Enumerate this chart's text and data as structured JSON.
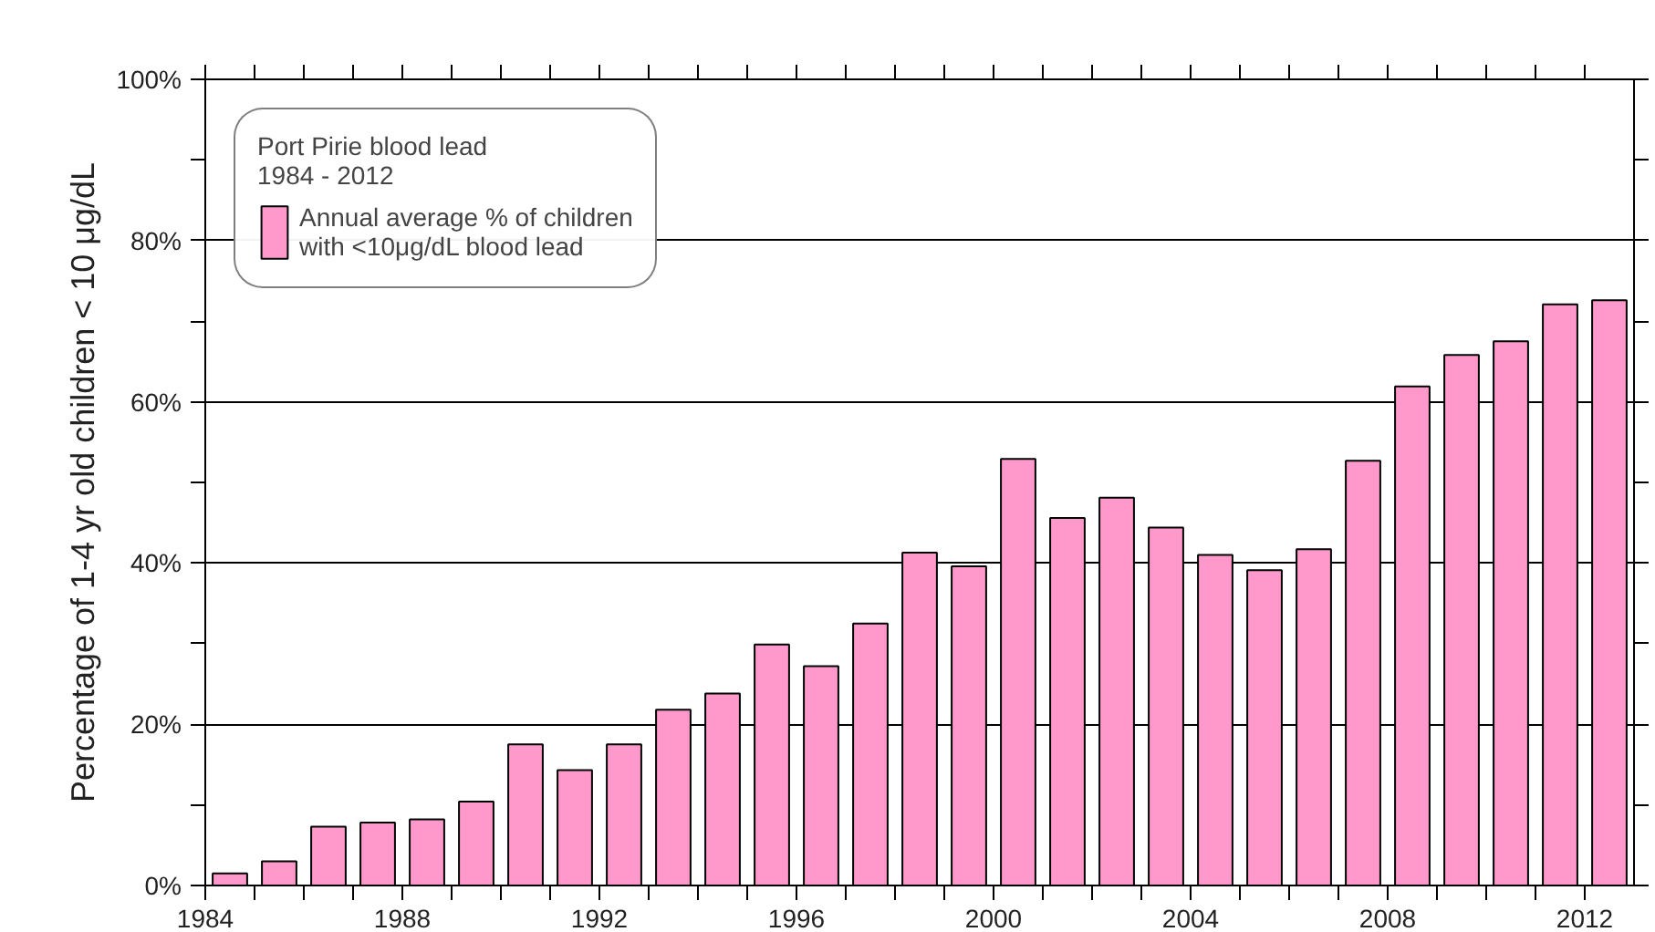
{
  "chart_data": {
    "type": "bar",
    "ylabel": "Percentage of 1-4 yr old children < 10 μg/dL",
    "legend_title": "Port Pirie blood lead\n1984 - 2012",
    "x": [
      1984,
      1985,
      1986,
      1987,
      1988,
      1989,
      1990,
      1991,
      1992,
      1993,
      1994,
      1995,
      1996,
      1997,
      1998,
      1999,
      2000,
      2001,
      2002,
      2003,
      2004,
      2005,
      2006,
      2007,
      2008,
      2009,
      2010,
      2011,
      2012
    ],
    "series": [
      {
        "name": "Annual average % of children\nwith <10μg/dL blood lead",
        "color": "#ff99cc",
        "values": [
          1.5,
          3,
          7.3,
          7.8,
          8.2,
          10.4,
          17.5,
          14.3,
          17.5,
          21.8,
          23.8,
          29.9,
          27.2,
          32.5,
          41.3,
          39.6,
          52.9,
          45.6,
          48.1,
          44.4,
          41.0,
          39.1,
          41.7,
          52.7,
          61.9,
          65.8,
          67.5,
          72.1,
          72.6
        ]
      }
    ],
    "xlim": [
      1983.5,
      2012.5
    ],
    "xticks": [
      {
        "value": 1983.5,
        "label": "1984"
      },
      {
        "value": 1984.5,
        "label": null
      },
      {
        "value": 1985.5,
        "label": null
      },
      {
        "value": 1986.5,
        "label": null
      },
      {
        "value": 1987.5,
        "label": "1988"
      },
      {
        "value": 1988.5,
        "label": null
      },
      {
        "value": 1989.5,
        "label": null
      },
      {
        "value": 1990.5,
        "label": null
      },
      {
        "value": 1991.5,
        "label": "1992"
      },
      {
        "value": 1992.5,
        "label": null
      },
      {
        "value": 1993.5,
        "label": null
      },
      {
        "value": 1994.5,
        "label": null
      },
      {
        "value": 1995.5,
        "label": "1996"
      },
      {
        "value": 1996.5,
        "label": null
      },
      {
        "value": 1997.5,
        "label": null
      },
      {
        "value": 1998.5,
        "label": null
      },
      {
        "value": 1999.5,
        "label": "2000"
      },
      {
        "value": 2000.5,
        "label": null
      },
      {
        "value": 2001.5,
        "label": null
      },
      {
        "value": 2002.5,
        "label": null
      },
      {
        "value": 2003.5,
        "label": "2004"
      },
      {
        "value": 2004.5,
        "label": null
      },
      {
        "value": 2005.5,
        "label": null
      },
      {
        "value": 2006.5,
        "label": null
      },
      {
        "value": 2007.5,
        "label": "2008"
      },
      {
        "value": 2008.5,
        "label": null
      },
      {
        "value": 2009.5,
        "label": null
      },
      {
        "value": 2010.5,
        "label": null
      },
      {
        "value": 2011.5,
        "label": "2012"
      }
    ],
    "ylim": [
      0,
      100
    ],
    "yticks": [
      {
        "value": 0,
        "label": "0%"
      },
      {
        "value": 10,
        "label": null
      },
      {
        "value": 20,
        "label": "20%"
      },
      {
        "value": 30,
        "label": null
      },
      {
        "value": 40,
        "label": "40%"
      },
      {
        "value": 50,
        "label": null
      },
      {
        "value": 60,
        "label": "60%"
      },
      {
        "value": 70,
        "label": null
      },
      {
        "value": 80,
        "label": "80%"
      },
      {
        "value": 90,
        "label": null
      },
      {
        "value": 100,
        "label": "100%"
      }
    ],
    "grid": "y",
    "legend": "top left"
  }
}
